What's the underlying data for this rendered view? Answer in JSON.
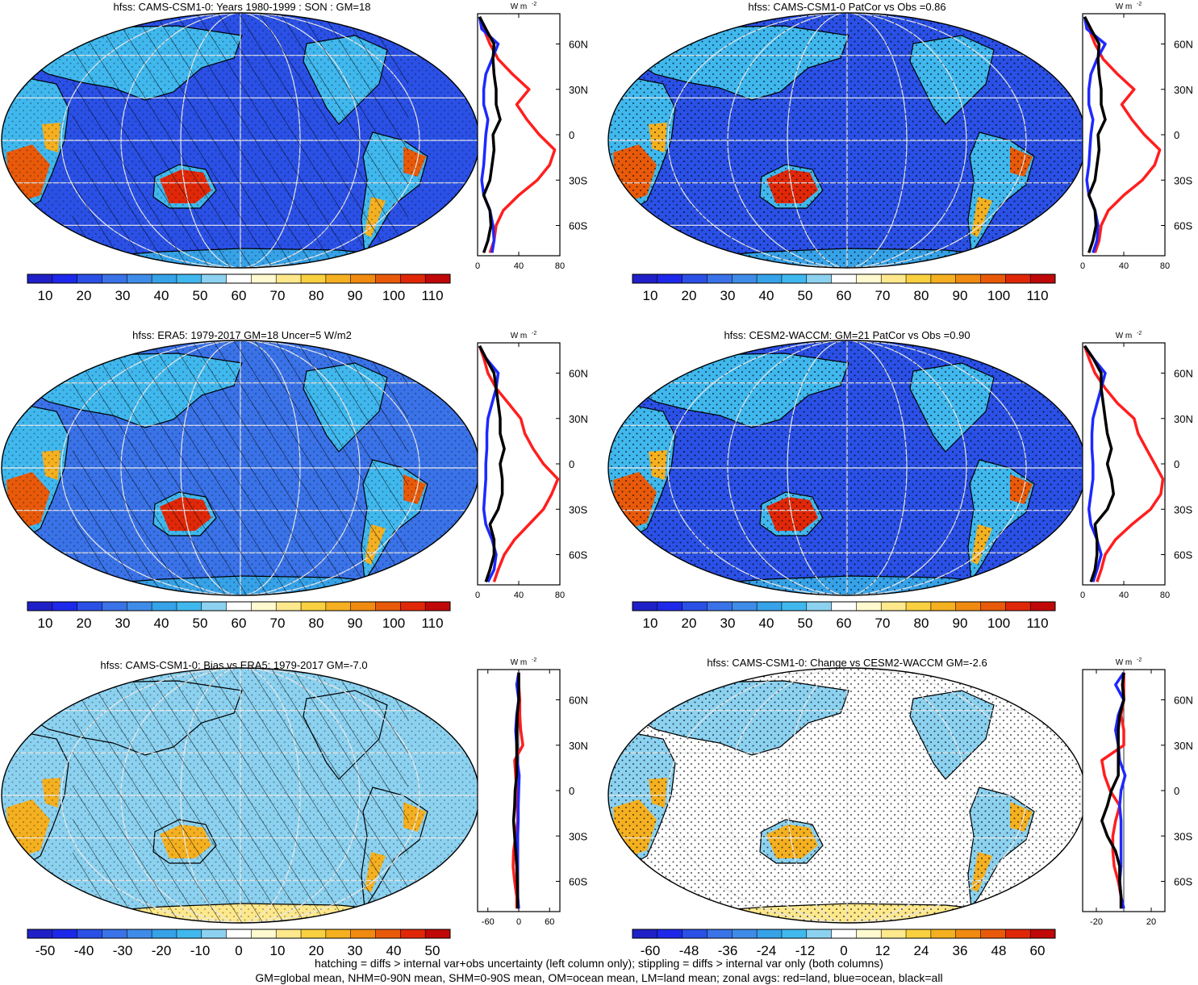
{
  "palette": [
    "#2020c8",
    "#1e28ea",
    "#2a50e6",
    "#3a72e8",
    "#3e8ce8",
    "#36a2e8",
    "#40b8ee",
    "#8cd2f0",
    "#ffffff",
    "#fffad0",
    "#fde88c",
    "#f8d040",
    "#f4b020",
    "#f08a10",
    "#e85a0a",
    "#e02808",
    "#c00808"
  ],
  "line_colors": {
    "land": "#ff1e1e",
    "ocean": "#1e28ff",
    "all": "#000000"
  },
  "panels": [
    {
      "title": "hfss: CAMS-CSM1-0: Years 1980-1999 : SON : GM=18",
      "map_field": {
        "base": "#2a50e6",
        "shading": "hatching+stippling"
      },
      "colorbar": {
        "labels": [
          "10",
          "20",
          "30",
          "40",
          "50",
          "60",
          "70",
          "80",
          "90",
          "100",
          "110"
        ]
      },
      "zonal": {
        "units_label": "W m",
        "units_exp": "-2",
        "xticks": [
          "0",
          "40",
          "80"
        ],
        "xlim": [
          0,
          80
        ],
        "yticks": [
          "60N",
          "30N",
          "0",
          "30S",
          "60S"
        ]
      }
    },
    {
      "title": "hfss: CAMS-CSM1-0 PatCor vs Obs =0.86",
      "map_field": {
        "base": "#2a50e6",
        "shading": "stippling"
      },
      "colorbar": {
        "labels": [
          "10",
          "20",
          "30",
          "40",
          "50",
          "60",
          "70",
          "80",
          "90",
          "100",
          "110"
        ]
      },
      "zonal": {
        "units_label": "W m",
        "units_exp": "-2",
        "xticks": [
          "0",
          "40",
          "80"
        ],
        "xlim": [
          0,
          80
        ],
        "yticks": [
          "60N",
          "30N",
          "0",
          "30S",
          "60S"
        ]
      }
    },
    {
      "title": "hfss: ERA5: 1979-2017 GM=18 Uncer=5 W/m2",
      "map_field": {
        "base": "#3a72e8",
        "shading": "hatching+stippling"
      },
      "colorbar": {
        "labels": [
          "10",
          "20",
          "30",
          "40",
          "50",
          "60",
          "70",
          "80",
          "90",
          "100",
          "110"
        ]
      },
      "zonal": {
        "units_label": "W m",
        "units_exp": "-2",
        "xticks": [
          "0",
          "40",
          "80"
        ],
        "xlim": [
          0,
          80
        ],
        "yticks": [
          "60N",
          "30N",
          "0",
          "30S",
          "60S"
        ]
      }
    },
    {
      "title": "hfss: CESM2-WACCM: GM=21 PatCor vs Obs =0.90",
      "map_field": {
        "base": "#2a50e6",
        "shading": "stippling"
      },
      "colorbar": {
        "labels": [
          "10",
          "20",
          "30",
          "40",
          "50",
          "60",
          "70",
          "80",
          "90",
          "100",
          "110"
        ]
      },
      "zonal": {
        "units_label": "W m",
        "units_exp": "-2",
        "xticks": [
          "0",
          "40",
          "80"
        ],
        "xlim": [
          0,
          80
        ],
        "yticks": [
          "60N",
          "30N",
          "0",
          "30S",
          "60S"
        ]
      }
    },
    {
      "title": "hfss: CAMS-CSM1-0: Bias vs ERA5: 1979-2017  GM=-7.0",
      "map_field": {
        "base": "#8cd2f0",
        "shading": "hatching+stippling"
      },
      "colorbar": {
        "labels": [
          "-50",
          "-40",
          "-30",
          "-20",
          "-10",
          "0",
          "10",
          "20",
          "30",
          "40",
          "50"
        ]
      },
      "zonal": {
        "units_label": "W m",
        "units_exp": "-2",
        "xticks": [
          "-60",
          "0",
          "60"
        ],
        "xlim": [
          -80,
          80
        ],
        "yticks": [
          "60N",
          "30N",
          "0",
          "30S",
          "60S"
        ]
      }
    },
    {
      "title": "hfss: CAMS-CSM1-0: Change vs CESM2-WACCM GM=-2.6",
      "map_field": {
        "base": "#ffffff",
        "shading": "stippling"
      },
      "colorbar": {
        "labels": [
          "-60",
          "-48",
          "-36",
          "-24",
          "-12",
          "0",
          "12",
          "24",
          "36",
          "48",
          "60"
        ]
      },
      "zonal": {
        "units_label": "W m",
        "units_exp": "-2",
        "xticks": [
          "-20",
          "20"
        ],
        "xlim": [
          -30,
          30
        ],
        "yticks": [
          "60N",
          "30N",
          "0",
          "30S",
          "60S"
        ]
      }
    }
  ],
  "chart_data": [
    {
      "type": "line",
      "title": "hfss: CAMS-CSM1-0: Years 1980-1999 : SON : GM=18",
      "xlabel": "W m-2",
      "xlim": [
        0,
        80
      ],
      "ylim": [
        -80,
        80
      ],
      "yticks": [
        "60N",
        "30N",
        "0",
        "30S",
        "60S"
      ],
      "y": [
        78,
        70,
        60,
        50,
        40,
        30,
        20,
        10,
        0,
        -10,
        -20,
        -30,
        -40,
        -50,
        -60,
        -70,
        -78
      ],
      "series": [
        {
          "values": [
            2,
            6,
            12,
            20,
            34,
            50,
            38,
            48,
            60,
            75,
            70,
            58,
            40,
            25,
            18,
            16,
            12
          ]
        },
        {
          "values": [
            2,
            4,
            20,
            14,
            8,
            6,
            6,
            10,
            8,
            7,
            6,
            4,
            6,
            12,
            15,
            16,
            14
          ]
        },
        {
          "values": [
            2,
            8,
            16,
            15,
            16,
            18,
            18,
            22,
            15,
            16,
            14,
            12,
            6,
            12,
            13,
            10,
            6
          ]
        }
      ]
    },
    {
      "type": "line",
      "title": "hfss: CAMS-CSM1-0 PatCor vs Obs =0.86",
      "xlabel": "W m-2",
      "xlim": [
        0,
        80
      ],
      "ylim": [
        -80,
        80
      ],
      "yticks": [
        "60N",
        "30N",
        "0",
        "30S",
        "60S"
      ],
      "y": [
        78,
        70,
        60,
        50,
        40,
        30,
        20,
        10,
        0,
        -10,
        -20,
        -30,
        -40,
        -50,
        -60,
        -70,
        -78
      ],
      "series": [
        {
          "values": [
            2,
            6,
            12,
            20,
            34,
            50,
            38,
            48,
            60,
            75,
            70,
            58,
            40,
            25,
            18,
            16,
            12
          ]
        },
        {
          "values": [
            2,
            4,
            22,
            14,
            8,
            6,
            6,
            10,
            8,
            7,
            6,
            4,
            6,
            12,
            15,
            14,
            10
          ]
        },
        {
          "values": [
            2,
            8,
            16,
            15,
            16,
            18,
            18,
            22,
            15,
            16,
            14,
            12,
            6,
            12,
            13,
            10,
            6
          ]
        }
      ]
    },
    {
      "type": "line",
      "title": "hfss: ERA5: 1979-2017 GM=18 Uncer=5 W/m2",
      "xlabel": "W m-2",
      "xlim": [
        0,
        80
      ],
      "ylim": [
        -80,
        80
      ],
      "yticks": [
        "60N",
        "30N",
        "0",
        "30S",
        "60S"
      ],
      "y": [
        78,
        70,
        60,
        50,
        40,
        30,
        20,
        10,
        0,
        -10,
        -20,
        -30,
        -40,
        -50,
        -60,
        -70,
        -78
      ],
      "series": [
        {
          "values": [
            2,
            6,
            10,
            18,
            30,
            42,
            46,
            54,
            64,
            78,
            72,
            64,
            50,
            36,
            26,
            20,
            16
          ]
        },
        {
          "values": [
            2,
            8,
            20,
            18,
            14,
            10,
            9,
            9,
            8,
            8,
            7,
            6,
            8,
            14,
            18,
            16,
            10
          ]
        },
        {
          "values": [
            2,
            8,
            16,
            18,
            20,
            22,
            22,
            26,
            22,
            24,
            24,
            20,
            12,
            16,
            16,
            12,
            8
          ]
        }
      ]
    },
    {
      "type": "line",
      "title": "hfss: CESM2-WACCM: GM=21 PatCor vs Obs =0.90",
      "xlabel": "W m-2",
      "xlim": [
        0,
        80
      ],
      "ylim": [
        -80,
        80
      ],
      "yticks": [
        "60N",
        "30N",
        "0",
        "30S",
        "60S"
      ],
      "y": [
        78,
        70,
        60,
        50,
        40,
        30,
        20,
        10,
        0,
        -10,
        -20,
        -30,
        -40,
        -50,
        -60,
        -70,
        -78
      ],
      "series": [
        {
          "values": [
            2,
            6,
            12,
            22,
            34,
            50,
            54,
            62,
            70,
            78,
            76,
            66,
            48,
            32,
            22,
            18,
            14
          ]
        },
        {
          "values": [
            2,
            10,
            22,
            18,
            14,
            10,
            9,
            9,
            10,
            10,
            8,
            6,
            8,
            14,
            18,
            14,
            10
          ]
        },
        {
          "values": [
            2,
            10,
            18,
            18,
            20,
            22,
            24,
            28,
            24,
            28,
            30,
            24,
            12,
            14,
            14,
            12,
            8
          ]
        }
      ]
    },
    {
      "type": "line",
      "title": "hfss: CAMS-CSM1-0: Bias vs ERA5: 1979-2017  GM=-7.0",
      "xlabel": "W m-2",
      "xlim": [
        -80,
        80
      ],
      "ylim": [
        -80,
        80
      ],
      "yticks": [
        "60N",
        "30N",
        "0",
        "30S",
        "60S"
      ],
      "y": [
        78,
        70,
        60,
        50,
        40,
        30,
        20,
        10,
        0,
        -10,
        -20,
        -30,
        -40,
        -50,
        -60,
        -70,
        -78
      ],
      "series": [
        {
          "values": [
            0,
            0,
            2,
            2,
            4,
            8,
            -8,
            -6,
            -4,
            -3,
            -2,
            -6,
            -10,
            -11,
            -8,
            -4,
            -4
          ]
        },
        {
          "values": [
            0,
            -4,
            0,
            -4,
            -6,
            -4,
            -3,
            1,
            0,
            -1,
            -1,
            -2,
            -2,
            -2,
            -3,
            -2,
            0
          ]
        },
        {
          "values": [
            0,
            0,
            0,
            -3,
            -4,
            -4,
            -4,
            -4,
            -7,
            -8,
            -10,
            -8,
            -6,
            -4,
            -3,
            -2,
            -2
          ]
        }
      ]
    },
    {
      "type": "line",
      "title": "hfss: CAMS-CSM1-0: Change vs CESM2-WACCM GM=-2.6",
      "xlabel": "W m-2",
      "xlim": [
        -30,
        30
      ],
      "ylim": [
        -80,
        80
      ],
      "yticks": [
        "60N",
        "30N",
        "0",
        "30S",
        "60S"
      ],
      "y": [
        78,
        70,
        60,
        50,
        40,
        30,
        20,
        10,
        0,
        -10,
        -20,
        -30,
        -40,
        -50,
        -60,
        -70,
        -78
      ],
      "series": [
        {
          "values": [
            0,
            0,
            0,
            -2,
            0,
            0,
            -16,
            -14,
            -10,
            -3,
            -6,
            -8,
            -8,
            -7,
            -4,
            -2,
            -2
          ]
        },
        {
          "values": [
            0,
            -6,
            0,
            -4,
            -6,
            -4,
            -3,
            1,
            -2,
            -3,
            -2,
            -2,
            -2,
            -2,
            -3,
            -2,
            0
          ]
        },
        {
          "values": [
            0,
            -1,
            0,
            -3,
            -4,
            -4,
            -4,
            -4,
            -9,
            -12,
            -16,
            -12,
            -6,
            -3,
            -3,
            -2,
            -2
          ]
        }
      ]
    }
  ],
  "footnote": {
    "line1": "hatching = diffs > internal var+obs uncertainty (left column only); stippling = diffs > internal var only (both columns)",
    "line2": "GM=global mean, NHM=0-90N mean, SHM=0-90S mean, OM=ocean mean, LM=land mean; zonal avgs: red=land, blue=ocean, black=all"
  }
}
